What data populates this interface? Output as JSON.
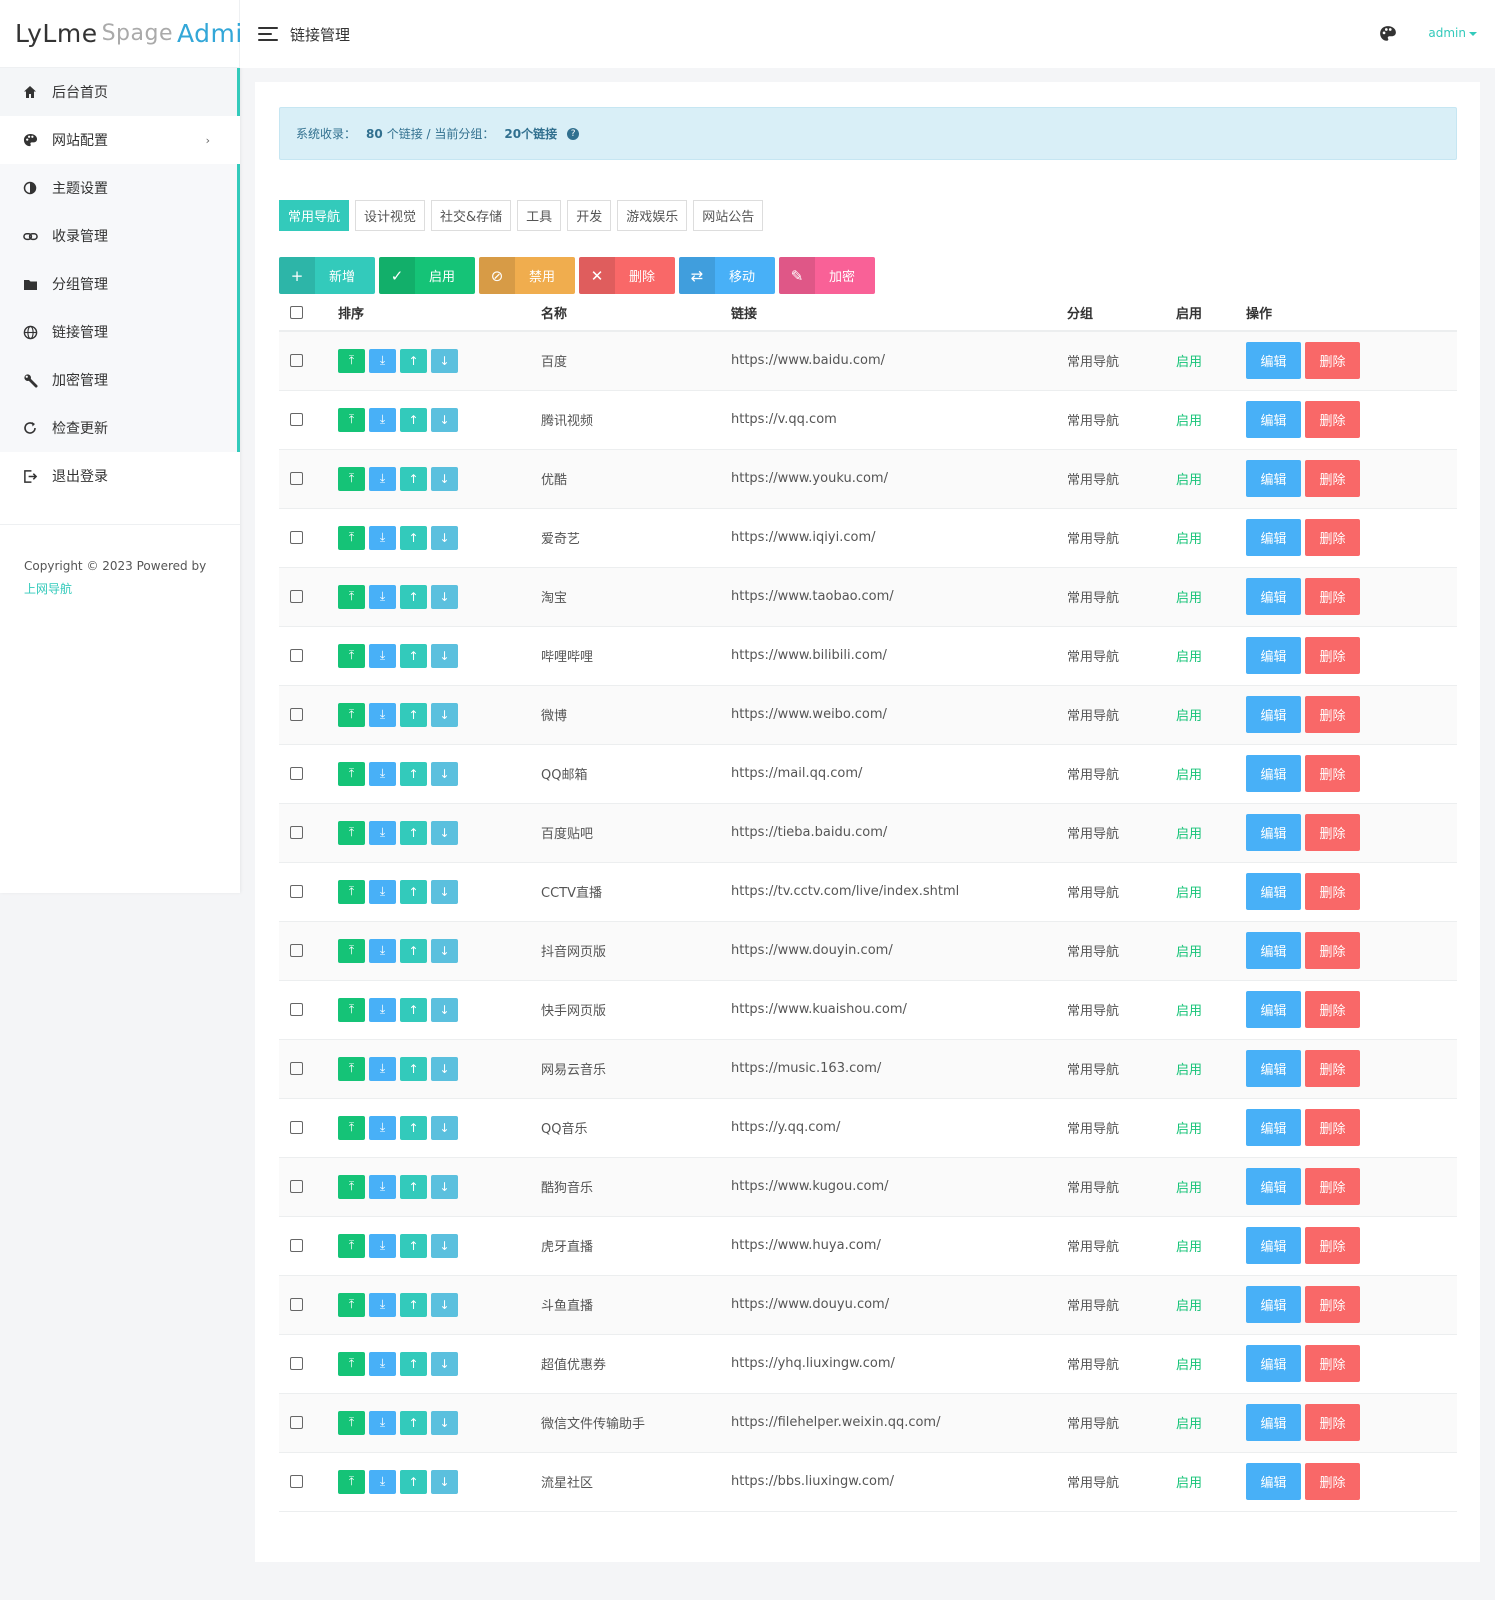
{
  "brand": {
    "part1": "LyLme",
    "part2": "Spage",
    "part3": "Admin"
  },
  "header": {
    "title": "链接管理",
    "user": "admin"
  },
  "sidebar": {
    "items": [
      {
        "label": "后台首页",
        "icon": "home-icon"
      },
      {
        "label": "网站配置",
        "icon": "palette-icon"
      },
      {
        "label": "主题设置",
        "icon": "contrast-icon"
      },
      {
        "label": "收录管理",
        "icon": "link-icon"
      },
      {
        "label": "分组管理",
        "icon": "folder-icon"
      },
      {
        "label": "链接管理",
        "icon": "globe-icon"
      },
      {
        "label": "加密管理",
        "icon": "wrench-icon"
      },
      {
        "label": "检查更新",
        "icon": "refresh-icon"
      },
      {
        "label": "退出登录",
        "icon": "logout-icon"
      }
    ],
    "footer_text": "Copyright © 2023 Powered by",
    "footer_link": "上网导航"
  },
  "alert": {
    "prefix": "系统收录：",
    "total": "80",
    "total_suffix": "个链接 / 当前分组：",
    "group_count": "20个链接"
  },
  "tabs": [
    "常用导航",
    "设计视觉",
    "社交&存储",
    "工具",
    "开发",
    "游戏娱乐",
    "网站公告"
  ],
  "toolbar": {
    "add": "新增",
    "enable": "启用",
    "disable": "禁用",
    "delete": "删除",
    "move": "移动",
    "encrypt": "加密"
  },
  "table": {
    "headers": {
      "sort": "排序",
      "name": "名称",
      "link": "链接",
      "group": "分组",
      "enabled": "启用",
      "actions": "操作"
    },
    "edit_label": "编辑",
    "delete_label": "删除",
    "rows": [
      {
        "name": "百度",
        "url": "https://www.baidu.com/",
        "group": "常用导航",
        "status": "启用"
      },
      {
        "name": "腾讯视频",
        "url": "https://v.qq.com",
        "group": "常用导航",
        "status": "启用"
      },
      {
        "name": "优酷",
        "url": "https://www.youku.com/",
        "group": "常用导航",
        "status": "启用"
      },
      {
        "name": "爱奇艺",
        "url": "https://www.iqiyi.com/",
        "group": "常用导航",
        "status": "启用"
      },
      {
        "name": "淘宝",
        "url": "https://www.taobao.com/",
        "group": "常用导航",
        "status": "启用"
      },
      {
        "name": "哔哩哔哩",
        "url": "https://www.bilibili.com/",
        "group": "常用导航",
        "status": "启用"
      },
      {
        "name": "微博",
        "url": "https://www.weibo.com/",
        "group": "常用导航",
        "status": "启用"
      },
      {
        "name": "QQ邮箱",
        "url": "https://mail.qq.com/",
        "group": "常用导航",
        "status": "启用"
      },
      {
        "name": "百度贴吧",
        "url": "https://tieba.baidu.com/",
        "group": "常用导航",
        "status": "启用"
      },
      {
        "name": "CCTV直播",
        "url": "https://tv.cctv.com/live/index.shtml",
        "group": "常用导航",
        "status": "启用"
      },
      {
        "name": "抖音网页版",
        "url": "https://www.douyin.com/",
        "group": "常用导航",
        "status": "启用"
      },
      {
        "name": "快手网页版",
        "url": "https://www.kuaishou.com/",
        "group": "常用导航",
        "status": "启用"
      },
      {
        "name": "网易云音乐",
        "url": "https://music.163.com/",
        "group": "常用导航",
        "status": "启用"
      },
      {
        "name": "QQ音乐",
        "url": "https://y.qq.com/",
        "group": "常用导航",
        "status": "启用"
      },
      {
        "name": "酷狗音乐",
        "url": "https://www.kugou.com/",
        "group": "常用导航",
        "status": "启用"
      },
      {
        "name": "虎牙直播",
        "url": "https://www.huya.com/",
        "group": "常用导航",
        "status": "启用"
      },
      {
        "name": "斗鱼直播",
        "url": "https://www.douyu.com/",
        "group": "常用导航",
        "status": "启用"
      },
      {
        "name": "超值优惠券",
        "url": "https://yhq.liuxingw.com/",
        "group": "常用导航",
        "status": "启用"
      },
      {
        "name": "微信文件传输助手",
        "url": "https://filehelper.weixin.qq.com/",
        "group": "常用导航",
        "status": "启用"
      },
      {
        "name": "流星社区",
        "url": "https://bbs.liuxingw.com/",
        "group": "常用导航",
        "status": "启用"
      }
    ]
  }
}
